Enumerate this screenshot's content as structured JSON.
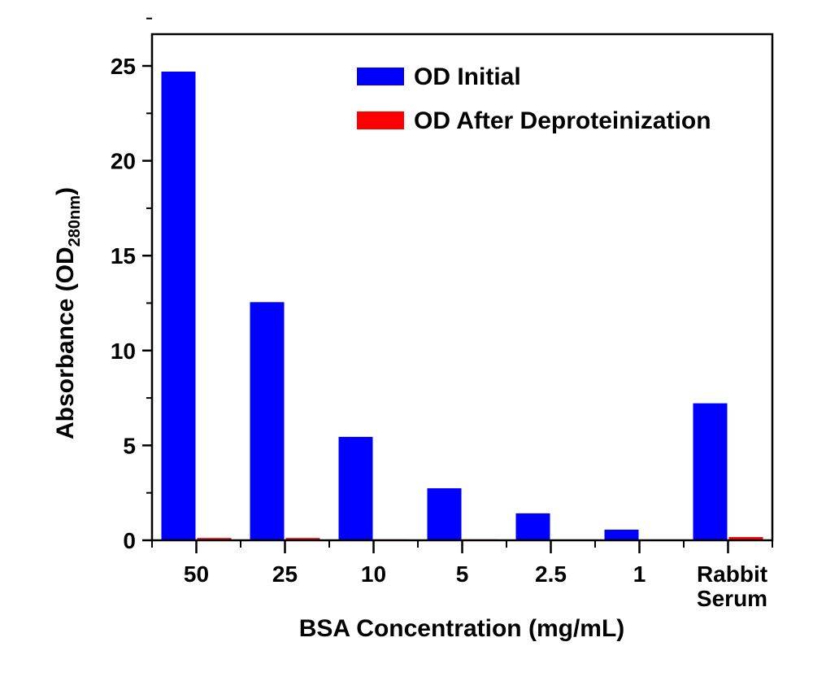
{
  "chart_data": {
    "type": "bar",
    "categories": [
      "50",
      "25",
      "10",
      "5",
      "2.5",
      "1",
      "Rabbit Serum"
    ],
    "category_lines": [
      [
        "50"
      ],
      [
        "25"
      ],
      [
        "10"
      ],
      [
        "5"
      ],
      [
        "2.5"
      ],
      [
        "1"
      ],
      [
        "Rabbit",
        "Serum"
      ]
    ],
    "series": [
      {
        "name": "OD Initial",
        "color": "#0000ff",
        "values": [
          24.7,
          12.55,
          5.45,
          2.74,
          1.42,
          0.56,
          7.22
        ]
      },
      {
        "name": "OD After Deproteinization",
        "color": "#ff0000",
        "values": [
          0.12,
          0.12,
          0.05,
          0.05,
          0.04,
          0.04,
          0.17
        ]
      }
    ],
    "xlabel": "BSA Concentration (mg/mL)",
    "ylabel": {
      "main": "Absorbance (OD",
      "subscript": "280nm",
      "close": ")"
    },
    "ylim": [
      0,
      26.5
    ],
    "yticks": [
      0,
      5,
      10,
      15,
      20,
      25
    ],
    "grid": false,
    "legend": "top-right"
  }
}
